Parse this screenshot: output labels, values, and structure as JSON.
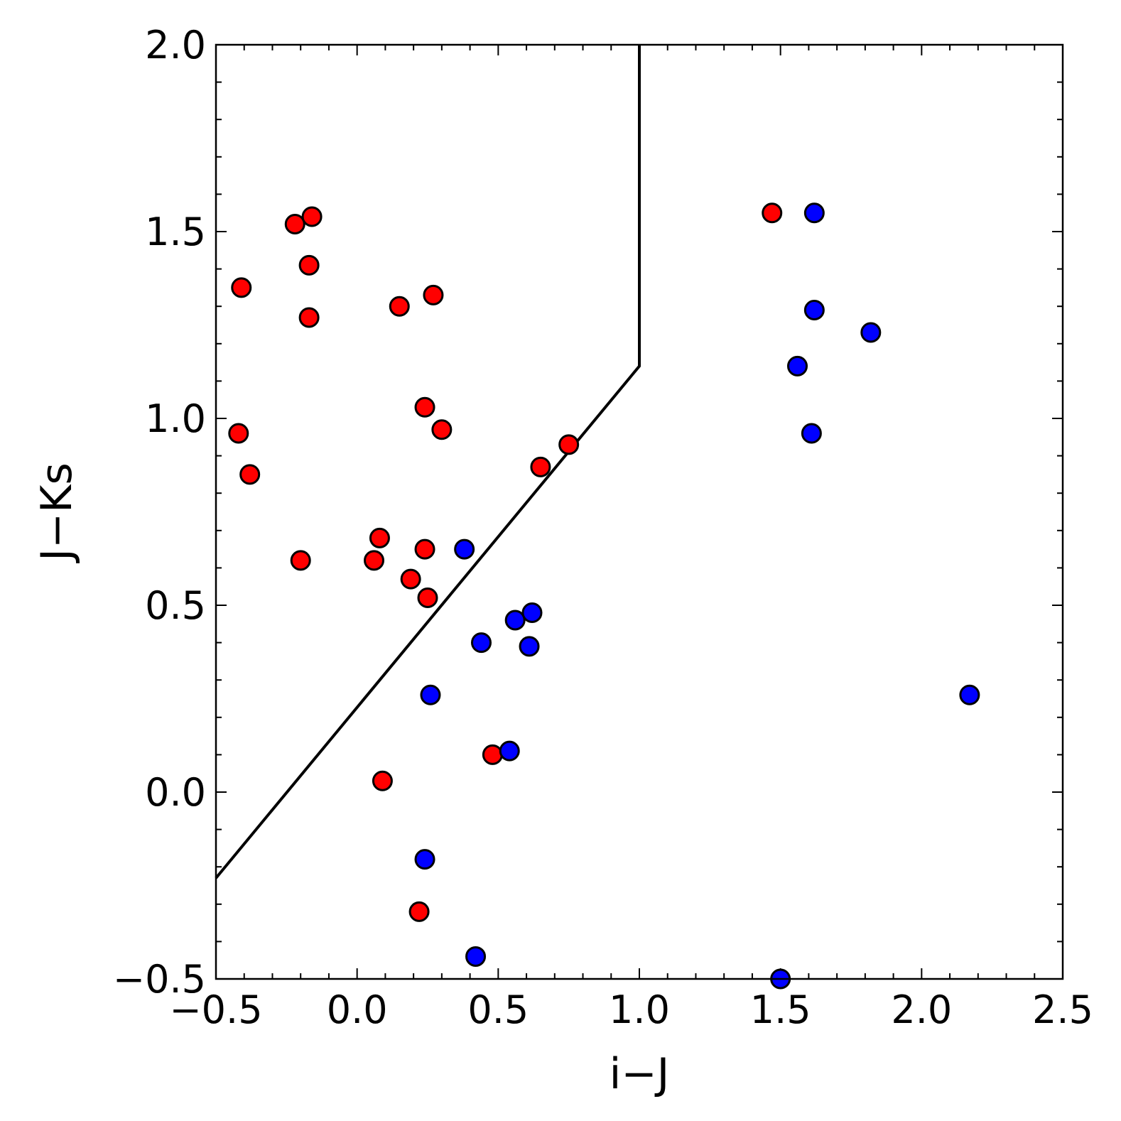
{
  "chart_data": {
    "type": "scatter",
    "title": "",
    "xlabel": "i−J",
    "ylabel": "J−Ks",
    "xlim": [
      -0.5,
      2.5
    ],
    "ylim": [
      -0.5,
      2.0
    ],
    "xticks": [
      -0.5,
      0.0,
      0.5,
      1.0,
      1.5,
      2.0,
      2.5
    ],
    "xtick_labels": [
      "−0.5",
      "0.0",
      "0.5",
      "1.0",
      "1.5",
      "2.0",
      "2.5"
    ],
    "yticks": [
      -0.5,
      0.0,
      0.5,
      1.0,
      1.5,
      2.0
    ],
    "ytick_labels": [
      "−0.5",
      "0.0",
      "0.5",
      "1.0",
      "1.5",
      "2.0"
    ],
    "minor_tick_step": 0.1,
    "grid": false,
    "boundary_line": {
      "color": "#000000",
      "points": [
        [
          -0.5,
          -0.23
        ],
        [
          1.0,
          1.14
        ],
        [
          1.0,
          2.0
        ]
      ]
    },
    "series": [
      {
        "color": "#ff0000",
        "points": [
          [
            -0.41,
            1.35
          ],
          [
            -0.22,
            1.52
          ],
          [
            -0.16,
            1.54
          ],
          [
            -0.17,
            1.41
          ],
          [
            -0.17,
            1.27
          ],
          [
            -0.42,
            0.96
          ],
          [
            -0.38,
            0.85
          ],
          [
            -0.2,
            0.62
          ],
          [
            0.15,
            1.3
          ],
          [
            0.27,
            1.33
          ],
          [
            0.24,
            1.03
          ],
          [
            0.3,
            0.97
          ],
          [
            0.65,
            0.87
          ],
          [
            0.75,
            0.93
          ],
          [
            0.08,
            0.68
          ],
          [
            0.06,
            0.62
          ],
          [
            0.19,
            0.57
          ],
          [
            0.24,
            0.65
          ],
          [
            0.25,
            0.52
          ],
          [
            0.09,
            0.03
          ],
          [
            0.48,
            0.1
          ],
          [
            0.22,
            -0.32
          ],
          [
            1.47,
            1.55
          ]
        ]
      },
      {
        "color": "#0000ff",
        "points": [
          [
            0.38,
            0.65
          ],
          [
            0.44,
            0.4
          ],
          [
            0.56,
            0.46
          ],
          [
            0.62,
            0.48
          ],
          [
            0.61,
            0.39
          ],
          [
            0.26,
            0.26
          ],
          [
            0.54,
            0.11
          ],
          [
            0.24,
            -0.18
          ],
          [
            0.42,
            -0.44
          ],
          [
            1.5,
            -0.5
          ],
          [
            1.62,
            1.55
          ],
          [
            1.62,
            1.29
          ],
          [
            1.82,
            1.23
          ],
          [
            1.56,
            1.14
          ],
          [
            1.61,
            0.96
          ],
          [
            2.17,
            0.26
          ]
        ]
      }
    ]
  }
}
